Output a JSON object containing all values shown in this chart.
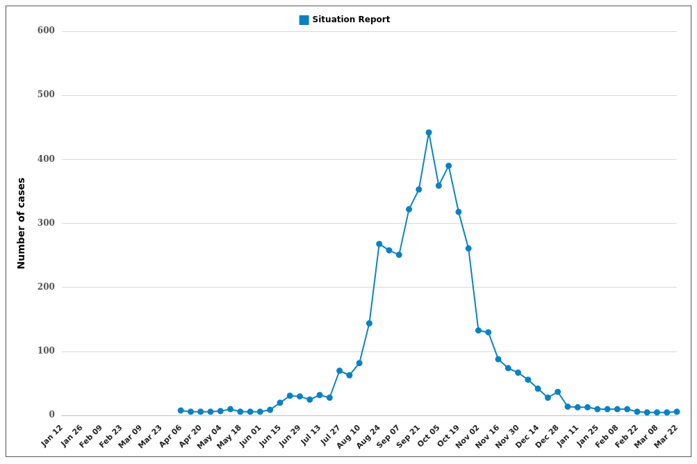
{
  "chart_data": {
    "type": "line",
    "ylabel": "Number of cases",
    "categories": [
      "Jan 12",
      null,
      "Jan 26",
      null,
      "Feb 09",
      null,
      "Feb 23",
      null,
      "Mar 09",
      null,
      "Mar 23",
      null,
      "Apr 06",
      null,
      "Apr 20",
      null,
      "May 04",
      null,
      "May 18",
      null,
      "Jun 01",
      null,
      "Jun 15",
      null,
      "Jun 29",
      null,
      "Jul 13",
      null,
      "Jul 27",
      null,
      "Aug 10",
      null,
      "Aug 24",
      null,
      "Sep 07",
      null,
      "Sep 21",
      null,
      "Oct 05",
      null,
      "Oct 19",
      null,
      "Nov 02",
      null,
      "Nov 16",
      null,
      "Nov 30",
      null,
      "Dec 14",
      null,
      "Dec 28",
      null,
      "Jan 11",
      null,
      "Jan 25",
      null,
      "Feb 08",
      null,
      "Feb 22",
      null,
      "Mar 08",
      null,
      "Mar 22"
    ],
    "series": [
      {
        "name": "Situation Report",
        "color": "#0a82c2",
        "values": [
          null,
          null,
          null,
          null,
          null,
          null,
          null,
          null,
          null,
          null,
          null,
          null,
          8,
          6,
          6,
          6,
          7,
          10,
          6,
          6,
          6,
          9,
          20,
          31,
          30,
          25,
          32,
          28,
          70,
          63,
          82,
          144,
          268,
          258,
          251,
          322,
          353,
          442,
          359,
          390,
          318,
          261,
          133,
          130,
          88,
          74,
          67,
          56,
          42,
          28,
          37,
          14,
          13,
          13,
          10,
          10,
          10,
          10,
          6,
          5,
          5,
          5,
          6
        ]
      }
    ],
    "ylim": [
      0,
      600
    ],
    "yticks": [
      0,
      100,
      200,
      300,
      400,
      500,
      600
    ],
    "grid": "y",
    "legend": "top",
    "marker": "circle",
    "line_style": "solid"
  }
}
